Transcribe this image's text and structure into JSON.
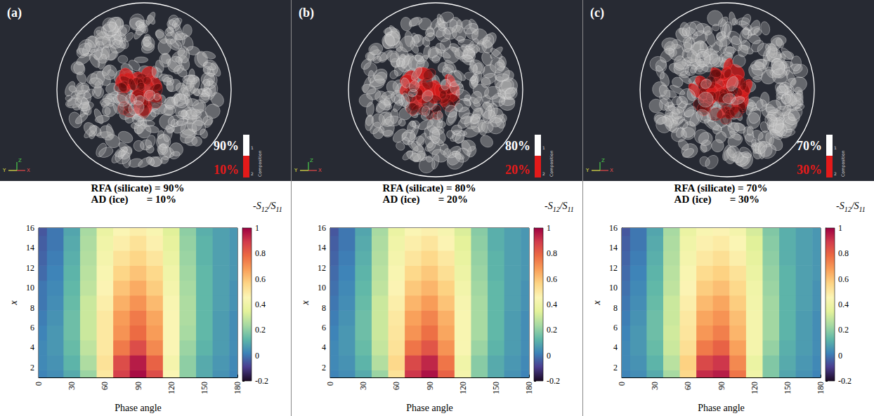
{
  "chart_data": [
    {
      "type": "heatmap",
      "title": "RFA (silicate) = 90%",
      "subtitle": "AD (ice)       = 10%",
      "x_label": "Phase angle",
      "y_label": "x",
      "xlim": [
        0,
        180
      ],
      "xticks": [
        0,
        30,
        60,
        90,
        120,
        150,
        180
      ],
      "ylim": [
        1,
        16
      ],
      "yticks": [
        2,
        4,
        6,
        8,
        10,
        12,
        14,
        16
      ],
      "x": [
        0,
        15,
        30,
        45,
        60,
        75,
        90,
        105,
        120,
        135,
        150,
        165,
        180
      ],
      "y": [
        1,
        2.5,
        4,
        5.5,
        7,
        8.5,
        10,
        11.5,
        13,
        14.5,
        16
      ],
      "cells": [
        [
          0.02,
          0.04,
          0.1,
          0.22,
          0.5,
          0.88,
          0.98,
          0.85,
          0.45,
          0.2,
          0.1,
          0.05,
          0.02
        ],
        [
          0.03,
          0.05,
          0.12,
          0.25,
          0.52,
          0.85,
          0.95,
          0.8,
          0.42,
          0.2,
          0.1,
          0.06,
          0.03
        ],
        [
          0.03,
          0.06,
          0.14,
          0.28,
          0.5,
          0.75,
          0.85,
          0.72,
          0.45,
          0.22,
          0.12,
          0.07,
          0.04
        ],
        [
          0.02,
          0.06,
          0.15,
          0.3,
          0.5,
          0.7,
          0.78,
          0.68,
          0.45,
          0.24,
          0.13,
          0.07,
          0.04
        ],
        [
          0.01,
          0.05,
          0.15,
          0.3,
          0.5,
          0.68,
          0.75,
          0.66,
          0.45,
          0.25,
          0.13,
          0.07,
          0.04
        ],
        [
          0.0,
          0.04,
          0.14,
          0.3,
          0.48,
          0.64,
          0.7,
          0.62,
          0.44,
          0.25,
          0.13,
          0.08,
          0.05
        ],
        [
          0.0,
          0.03,
          0.13,
          0.28,
          0.46,
          0.6,
          0.65,
          0.58,
          0.42,
          0.24,
          0.13,
          0.08,
          0.05
        ],
        [
          -0.02,
          0.02,
          0.12,
          0.27,
          0.44,
          0.56,
          0.6,
          0.55,
          0.4,
          0.23,
          0.13,
          0.08,
          0.06
        ],
        [
          -0.03,
          0.01,
          0.11,
          0.26,
          0.42,
          0.52,
          0.56,
          0.51,
          0.38,
          0.22,
          0.12,
          0.08,
          0.06
        ],
        [
          -0.04,
          0.0,
          0.1,
          0.25,
          0.4,
          0.48,
          0.52,
          0.47,
          0.36,
          0.21,
          0.12,
          0.08,
          0.06
        ],
        [
          -0.05,
          0.0,
          0.09,
          0.24,
          0.38,
          0.45,
          0.48,
          0.44,
          0.34,
          0.2,
          0.11,
          0.08,
          0.06
        ]
      ],
      "colorbar": {
        "label": [
          {
            "text": "-S",
            "sub": "12"
          },
          {
            "text": "/S",
            "sub": "11"
          }
        ],
        "range": [
          -0.2,
          1
        ],
        "ticks": [
          -0.2,
          0,
          0.2,
          0.4,
          0.6,
          0.8,
          1
        ]
      }
    },
    {
      "type": "heatmap",
      "title": "RFA (silicate) = 80%",
      "subtitle": "AD (ice)       = 20%",
      "x_label": "Phase angle",
      "y_label": "x",
      "xlim": [
        0,
        180
      ],
      "xticks": [
        0,
        30,
        60,
        90,
        120,
        150,
        180
      ],
      "ylim": [
        1,
        16
      ],
      "yticks": [
        2,
        4,
        6,
        8,
        10,
        12,
        14,
        16
      ],
      "x": [
        0,
        15,
        30,
        45,
        60,
        75,
        90,
        105,
        120,
        135,
        150,
        165,
        180
      ],
      "y": [
        1,
        2.5,
        4,
        5.5,
        7,
        8.5,
        10,
        11.5,
        13,
        14.5,
        16
      ],
      "cells": [
        [
          0.02,
          0.04,
          0.1,
          0.22,
          0.52,
          0.9,
          0.97,
          0.8,
          0.42,
          0.19,
          0.1,
          0.05,
          0.02
        ],
        [
          0.03,
          0.05,
          0.12,
          0.26,
          0.55,
          0.86,
          0.93,
          0.76,
          0.4,
          0.19,
          0.1,
          0.06,
          0.03
        ],
        [
          0.03,
          0.06,
          0.14,
          0.29,
          0.52,
          0.76,
          0.83,
          0.7,
          0.44,
          0.22,
          0.12,
          0.07,
          0.04
        ],
        [
          0.02,
          0.06,
          0.15,
          0.3,
          0.51,
          0.7,
          0.77,
          0.66,
          0.44,
          0.24,
          0.13,
          0.07,
          0.04
        ],
        [
          0.01,
          0.05,
          0.15,
          0.3,
          0.5,
          0.67,
          0.73,
          0.64,
          0.44,
          0.24,
          0.13,
          0.07,
          0.04
        ],
        [
          0.0,
          0.04,
          0.14,
          0.3,
          0.48,
          0.63,
          0.68,
          0.6,
          0.43,
          0.24,
          0.13,
          0.08,
          0.05
        ],
        [
          -0.01,
          0.03,
          0.13,
          0.28,
          0.46,
          0.59,
          0.63,
          0.57,
          0.41,
          0.23,
          0.13,
          0.08,
          0.05
        ],
        [
          -0.02,
          0.02,
          0.12,
          0.27,
          0.44,
          0.55,
          0.59,
          0.53,
          0.39,
          0.22,
          0.12,
          0.08,
          0.06
        ],
        [
          -0.03,
          0.01,
          0.11,
          0.26,
          0.42,
          0.51,
          0.55,
          0.5,
          0.37,
          0.21,
          0.12,
          0.08,
          0.06
        ],
        [
          -0.04,
          0.0,
          0.1,
          0.25,
          0.4,
          0.48,
          0.51,
          0.46,
          0.35,
          0.2,
          0.11,
          0.08,
          0.06
        ],
        [
          -0.05,
          0.0,
          0.09,
          0.24,
          0.38,
          0.45,
          0.47,
          0.43,
          0.33,
          0.19,
          0.11,
          0.08,
          0.06
        ]
      ],
      "colorbar": {
        "label": [
          {
            "text": "-S",
            "sub": "12"
          },
          {
            "text": "/S",
            "sub": "11"
          }
        ],
        "range": [
          -0.2,
          1
        ],
        "ticks": [
          -0.2,
          0,
          0.2,
          0.4,
          0.6,
          0.8,
          1
        ]
      }
    },
    {
      "type": "heatmap",
      "title": "RFA (silicate) = 70%",
      "subtitle": "AD (ice)       = 30%",
      "x_label": "Phase angle",
      "y_label": "x",
      "xlim": [
        0,
        180
      ],
      "xticks": [
        0,
        30,
        60,
        90,
        120,
        150,
        180
      ],
      "ylim": [
        1,
        16
      ],
      "yticks": [
        2,
        4,
        6,
        8,
        10,
        12,
        14,
        16
      ],
      "x": [
        0,
        15,
        30,
        45,
        60,
        75,
        90,
        105,
        120,
        135,
        150,
        165,
        180
      ],
      "y": [
        1,
        2.5,
        4,
        5.5,
        7,
        8.5,
        10,
        11.5,
        13,
        14.5,
        16
      ],
      "cells": [
        [
          0.02,
          0.04,
          0.1,
          0.24,
          0.55,
          0.92,
          0.95,
          0.76,
          0.4,
          0.18,
          0.09,
          0.05,
          0.02
        ],
        [
          0.03,
          0.05,
          0.12,
          0.27,
          0.57,
          0.86,
          0.9,
          0.72,
          0.38,
          0.18,
          0.1,
          0.06,
          0.03
        ],
        [
          0.03,
          0.06,
          0.14,
          0.3,
          0.53,
          0.75,
          0.8,
          0.67,
          0.42,
          0.21,
          0.11,
          0.07,
          0.04
        ],
        [
          0.02,
          0.06,
          0.15,
          0.31,
          0.51,
          0.69,
          0.74,
          0.63,
          0.42,
          0.23,
          0.12,
          0.07,
          0.04
        ],
        [
          0.01,
          0.05,
          0.15,
          0.3,
          0.5,
          0.66,
          0.7,
          0.61,
          0.42,
          0.23,
          0.12,
          0.07,
          0.04
        ],
        [
          0.0,
          0.04,
          0.14,
          0.3,
          0.48,
          0.62,
          0.66,
          0.58,
          0.41,
          0.23,
          0.12,
          0.08,
          0.05
        ],
        [
          -0.01,
          0.03,
          0.13,
          0.28,
          0.46,
          0.58,
          0.61,
          0.55,
          0.4,
          0.22,
          0.12,
          0.08,
          0.05
        ],
        [
          -0.02,
          0.02,
          0.12,
          0.27,
          0.44,
          0.54,
          0.57,
          0.52,
          0.38,
          0.21,
          0.12,
          0.08,
          0.06
        ],
        [
          -0.03,
          0.01,
          0.11,
          0.26,
          0.42,
          0.5,
          0.53,
          0.48,
          0.36,
          0.2,
          0.11,
          0.08,
          0.06
        ],
        [
          -0.04,
          0.0,
          0.1,
          0.25,
          0.4,
          0.47,
          0.49,
          0.45,
          0.34,
          0.19,
          0.11,
          0.08,
          0.06
        ],
        [
          -0.05,
          0.0,
          0.09,
          0.24,
          0.38,
          0.44,
          0.46,
          0.42,
          0.32,
          0.18,
          0.11,
          0.08,
          0.06
        ]
      ],
      "colorbar": {
        "label": [
          {
            "text": "-S",
            "sub": "12"
          },
          {
            "text": "/S",
            "sub": "11"
          }
        ],
        "range": [
          -0.2,
          1
        ],
        "ticks": [
          -0.2,
          0,
          0.2,
          0.4,
          0.6,
          0.8,
          1
        ]
      }
    }
  ],
  "renders": [
    {
      "label": "(a)",
      "composition_title": "Composition",
      "classes": [
        "1",
        "2"
      ],
      "class_labels": [
        "90%",
        "10%"
      ],
      "axes": [
        "Z",
        "Y",
        "X"
      ]
    },
    {
      "label": "(b)",
      "composition_title": "Composition",
      "classes": [
        "1",
        "2"
      ],
      "class_labels": [
        "80%",
        "20%"
      ],
      "axes": [
        "Z",
        "Y",
        "X"
      ]
    },
    {
      "label": "(c)",
      "composition_title": "Composition",
      "classes": [
        "1",
        "2"
      ],
      "class_labels": [
        "70%",
        "30%"
      ],
      "axes": [
        "Z",
        "Y",
        "X"
      ]
    }
  ]
}
